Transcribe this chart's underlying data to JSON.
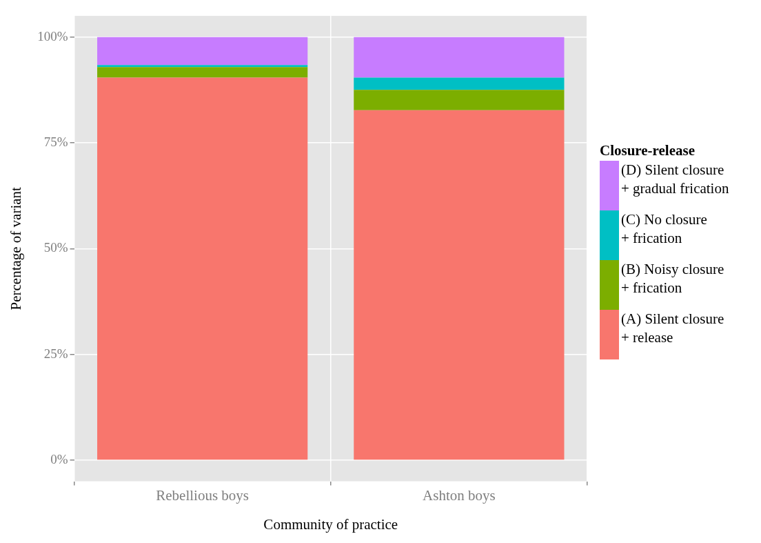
{
  "chart_data": {
    "type": "bar",
    "stacked": true,
    "xlabel": "Community of practice",
    "ylabel": "Percentage of variant",
    "legend_title": "Closure-release",
    "legend": "right",
    "grid": true,
    "categories": [
      "Rebellious boys",
      "Ashton boys"
    ],
    "series": [
      {
        "name": "(A) Silent closure\n+ release",
        "color": "#f8766d",
        "values": [
          90.4,
          82.7
        ]
      },
      {
        "name": "(B) Noisy closure\n+ frication",
        "color": "#7cae00",
        "values": [
          2.5,
          4.8
        ]
      },
      {
        "name": "(C) No closure\n+ frication",
        "color": "#00bfc4",
        "values": [
          0.5,
          2.9
        ]
      },
      {
        "name": "(D) Silent closure\n+ gradual frication",
        "color": "#c77cff",
        "values": [
          6.6,
          9.6
        ]
      }
    ],
    "ylim": [
      -5,
      105
    ],
    "yticks": [
      {
        "value": 0,
        "label": "0%"
      },
      {
        "value": 25,
        "label": "25%"
      },
      {
        "value": 50,
        "label": "50%"
      },
      {
        "value": 75,
        "label": "75%"
      },
      {
        "value": 100,
        "label": "100%"
      }
    ]
  }
}
